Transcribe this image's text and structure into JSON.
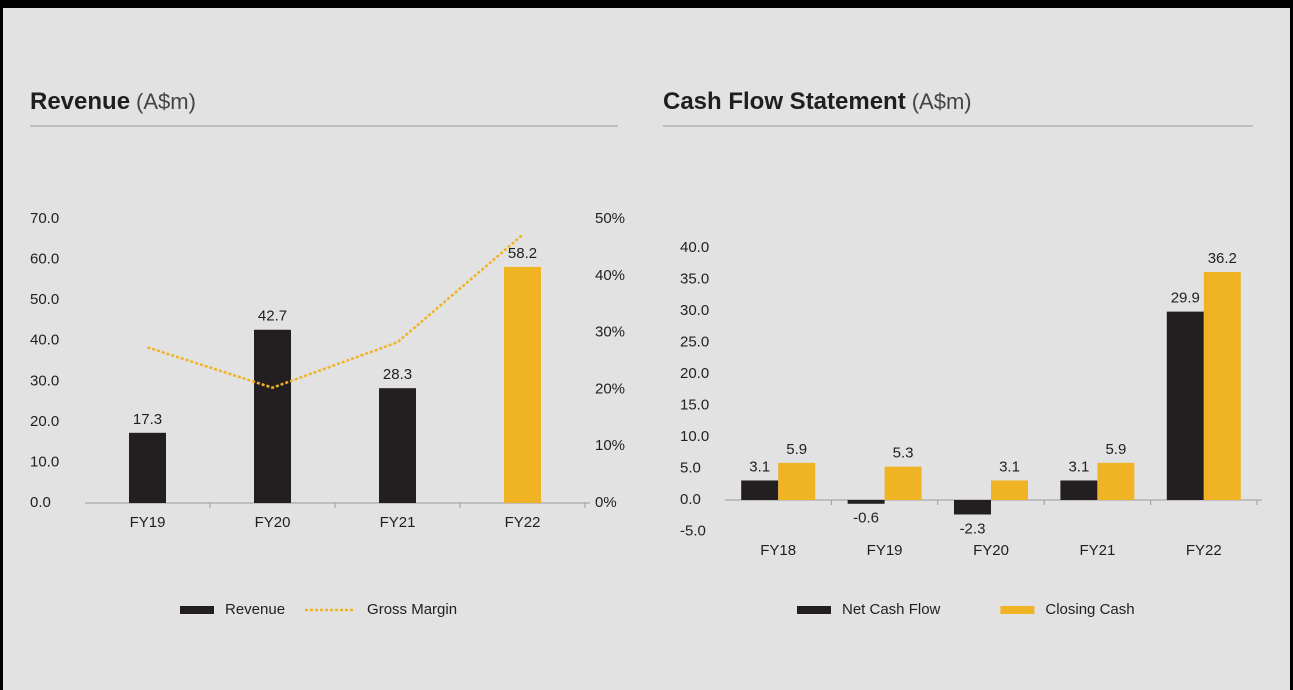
{
  "chart_data": [
    {
      "type": "bar",
      "title": "Revenue",
      "title_unit": "(A$m)",
      "categories": [
        "FY19",
        "FY20",
        "FY21",
        "FY22"
      ],
      "series": [
        {
          "name": "Revenue",
          "type": "bar",
          "color": "#231f20",
          "colors": [
            "#231f20",
            "#231f20",
            "#231f20",
            "#f0b323"
          ],
          "values": [
            17.3,
            42.7,
            28.3,
            58.2
          ]
        },
        {
          "name": "Gross Margin",
          "type": "line",
          "style": "dotted",
          "axis": "y2",
          "color": "#f0b323",
          "values": [
            27.4,
            20.3,
            28.3,
            47.2
          ]
        }
      ],
      "ylim": [
        0,
        70
      ],
      "yticks": [
        {
          "value": 0,
          "label": "0.0"
        },
        {
          "value": 10,
          "label": "10.0"
        },
        {
          "value": 20,
          "label": "20.0"
        },
        {
          "value": 30,
          "label": "30.0"
        },
        {
          "value": 40,
          "label": "40.0"
        },
        {
          "value": 50,
          "label": "50.0"
        },
        {
          "value": 60,
          "label": "60.0"
        },
        {
          "value": 70,
          "label": "70.0"
        }
      ],
      "y2lim": [
        0,
        50
      ],
      "y2ticks": [
        {
          "value": 0,
          "label": "0%"
        },
        {
          "value": 10,
          "label": "10%"
        },
        {
          "value": 20,
          "label": "20%"
        },
        {
          "value": 30,
          "label": "30%"
        },
        {
          "value": 40,
          "label": "40%"
        },
        {
          "value": 50,
          "label": "50%"
        }
      ],
      "legend": "bottom"
    },
    {
      "type": "bar",
      "title": "Cash Flow Statement",
      "title_unit": "(A$m)",
      "categories": [
        "FY18",
        "FY19",
        "FY20",
        "FY21",
        "FY22"
      ],
      "series": [
        {
          "name": "Net Cash Flow",
          "type": "bar",
          "color": "#231f20",
          "values": [
            3.1,
            -0.6,
            -2.3,
            3.1,
            29.9
          ]
        },
        {
          "name": "Closing Cash",
          "type": "bar",
          "color": "#f0b323",
          "values": [
            5.9,
            5.3,
            3.1,
            5.9,
            36.2
          ]
        }
      ],
      "ylim": [
        -5,
        40
      ],
      "yticks": [
        {
          "value": -5,
          "label": "-5.0"
        },
        {
          "value": 0,
          "label": "0.0"
        },
        {
          "value": 5,
          "label": "5.0"
        },
        {
          "value": 10,
          "label": "10.0"
        },
        {
          "value": 15,
          "label": "15.0"
        },
        {
          "value": 20,
          "label": "20.0"
        },
        {
          "value": 25,
          "label": "25.0"
        },
        {
          "value": 30,
          "label": "30.0"
        },
        {
          "value": 35,
          "label": "35.0"
        },
        {
          "value": 40,
          "label": "40.0"
        }
      ],
      "legend": "bottom"
    }
  ]
}
